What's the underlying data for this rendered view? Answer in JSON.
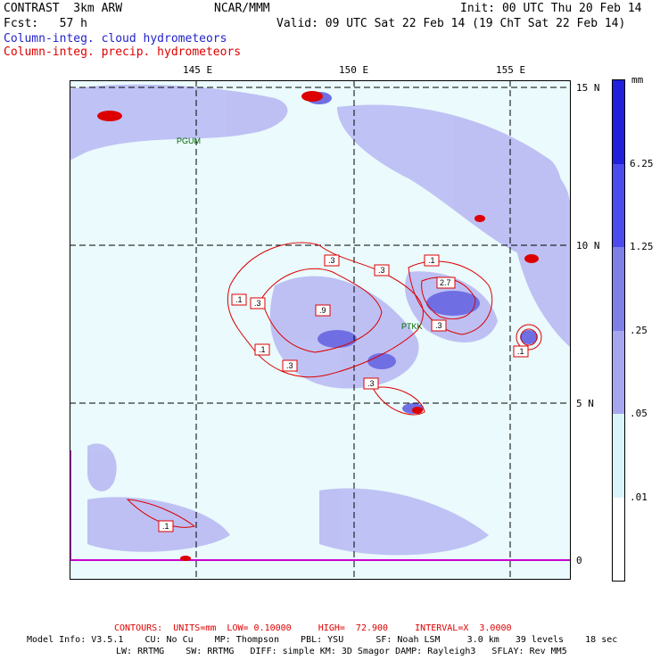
{
  "header": {
    "model": "CONTRAST  3km ARW",
    "org": "NCAR/MMM",
    "init": "Init: 00 UTC Thu 20 Feb 14",
    "fcst": "Fcst:   57 h",
    "valid": "Valid: 09 UTC Sat 22 Feb 14 (19 ChT Sat 22 Feb 14)",
    "field_cloud": "Column-integ. cloud hydrometeors",
    "field_precip": "Column-integ. precip. hydrometeors"
  },
  "axes": {
    "lon_labels": [
      "145 E",
      "150 E",
      "155 E"
    ],
    "lat_labels": [
      "15 N",
      "10 N",
      "5 N",
      "0"
    ]
  },
  "stations": [
    {
      "name": "PGUM",
      "lon": 144.8,
      "lat": 13.5
    },
    {
      "name": "PTKK",
      "lon": 151.8,
      "lat": 7.5
    }
  ],
  "legend": {
    "unit": "mm",
    "labels": [
      "6.25",
      "1.25",
      ".25",
      ".05",
      ".01"
    ],
    "colors": [
      "#2020dd",
      "#4b4bee",
      "#7f7fe8",
      "#a6a6f0",
      "#d9f4fb",
      "#ffffff"
    ]
  },
  "contour_labels": [
    ".1",
    ".3",
    ".3",
    ".1",
    ".3",
    ".9",
    "2.7",
    ".3",
    ".1",
    ".3",
    ".1",
    ".3",
    ".1"
  ],
  "footer": {
    "contours": "CONTOURS:  UNITS=mm  LOW= 0.10000     HIGH=  72.900     INTERVAL=X  3.0000",
    "line1": "Model Info: V3.5.1    CU: No Cu    MP: Thompson    PBL: YSU      SF: Noah LSM     3.0 km   39 levels    18 sec",
    "line2": "LW: RRTMG    SW: RRTMG   DIFF: simple KM: 3D Smagor DAMP: Rayleigh3   SFLAY: Rev MM5"
  }
}
